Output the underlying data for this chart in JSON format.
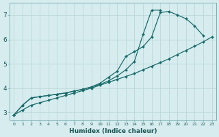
{
  "title": "",
  "xlabel": "Humidex (Indice chaleur)",
  "ylabel": "",
  "bg_color": "#d6ecee",
  "grid_color": "#b8d4d6",
  "line_color": "#1a6b6b",
  "x": [
    0,
    1,
    2,
    3,
    4,
    5,
    6,
    7,
    8,
    9,
    10,
    11,
    12,
    13,
    14,
    15,
    16,
    17,
    18,
    19,
    20,
    21,
    22,
    23
  ],
  "line1": [
    2.9,
    3.3,
    3.6,
    3.65,
    3.7,
    3.75,
    3.8,
    3.88,
    3.95,
    4.05,
    4.15,
    4.3,
    4.5,
    4.75,
    5.1,
    6.2,
    7.2,
    7.2,
    null,
    null,
    null,
    null,
    null,
    null
  ],
  "line2": [
    2.9,
    3.3,
    3.6,
    3.65,
    3.7,
    3.75,
    3.8,
    3.88,
    3.95,
    4.05,
    4.2,
    4.45,
    4.7,
    5.3,
    5.5,
    5.7,
    6.1,
    7.1,
    7.15,
    7.0,
    6.85,
    6.55,
    6.15,
    null
  ],
  "line3": [
    2.9,
    3.1,
    3.3,
    3.4,
    3.5,
    3.6,
    3.7,
    3.8,
    3.9,
    4.0,
    4.12,
    4.24,
    4.36,
    4.48,
    4.6,
    4.75,
    4.9,
    5.05,
    5.2,
    5.38,
    5.55,
    5.72,
    5.9,
    6.1
  ],
  "ylim": [
    2.7,
    7.5
  ],
  "xlim": [
    -0.5,
    23.5
  ],
  "yticks": [
    3,
    4,
    5,
    6,
    7
  ],
  "xticks": [
    0,
    1,
    2,
    3,
    4,
    5,
    6,
    7,
    8,
    9,
    10,
    11,
    12,
    13,
    14,
    15,
    16,
    17,
    18,
    19,
    20,
    21,
    22,
    23
  ]
}
